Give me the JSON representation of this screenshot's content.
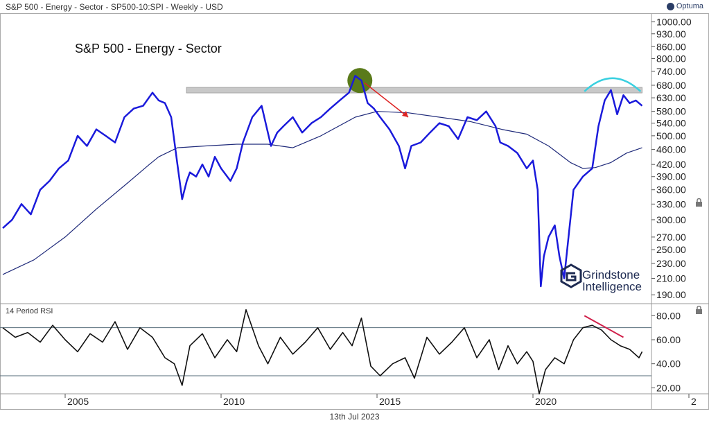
{
  "header": {
    "symbol_line": "S&P 500 - Energy - Sector  - SP500-10:SPI - Weekly - USD",
    "brand": "Optuma"
  },
  "footer": {
    "date": "13th Jul 2023"
  },
  "watermark": {
    "line1": "Grindstone",
    "line2": "Intelligence"
  },
  "colors": {
    "price": "#1a1adb",
    "ma": "#1f2a7a",
    "rsi": "#111111",
    "resistance": "#c8c8c8",
    "highlight_circle": "#5a7a1a",
    "arrow": "#dd2222",
    "arc": "#3ad0e0",
    "divergence": "#d0204a"
  },
  "chart_data": [
    {
      "type": "line",
      "title": "S&P 500 - Energy - Sector",
      "yscale": "log",
      "ylim": [
        180,
        1050
      ],
      "xlim": [
        2003.0,
        2023.8
      ],
      "y_ticks": [
        "1000.00",
        "930.00",
        "860.00",
        "800.00",
        "740.00",
        "680.00",
        "630.00",
        "580.00",
        "540.00",
        "500.00",
        "460.00",
        "420.00",
        "390.00",
        "360.00",
        "330.00",
        "300.00",
        "270.00",
        "250.00",
        "230.00",
        "210.00",
        "190.00"
      ],
      "x_ticks": [
        "2005",
        "2010",
        "2015",
        "2020",
        "2"
      ],
      "series": [
        {
          "role": "price",
          "x": [
            2003.0,
            2003.3,
            2003.6,
            2003.9,
            2004.2,
            2004.5,
            2004.8,
            2005.1,
            2005.4,
            2005.7,
            2006.0,
            2006.3,
            2006.6,
            2006.9,
            2007.2,
            2007.5,
            2007.8,
            2008.0,
            2008.2,
            2008.4,
            2008.6,
            2008.75,
            2008.9,
            2009.0,
            2009.2,
            2009.4,
            2009.6,
            2009.8,
            2010.0,
            2010.3,
            2010.5,
            2010.7,
            2011.0,
            2011.3,
            2011.6,
            2011.8,
            2012.0,
            2012.3,
            2012.6,
            2012.9,
            2013.2,
            2013.5,
            2013.8,
            2014.1,
            2014.3,
            2014.5,
            2014.7,
            2014.9,
            2015.1,
            2015.4,
            2015.7,
            2015.9,
            2016.1,
            2016.4,
            2016.7,
            2017.0,
            2017.3,
            2017.6,
            2017.9,
            2018.2,
            2018.5,
            2018.8,
            2018.95,
            2019.2,
            2019.5,
            2019.8,
            2020.0,
            2020.15,
            2020.25,
            2020.35,
            2020.5,
            2020.7,
            2020.85,
            2021.0,
            2021.3,
            2021.6,
            2021.9,
            2022.1,
            2022.3,
            2022.5,
            2022.7,
            2022.9,
            2023.1,
            2023.3,
            2023.5
          ],
          "y": [
            285,
            300,
            330,
            310,
            360,
            380,
            410,
            430,
            500,
            470,
            520,
            500,
            480,
            560,
            590,
            600,
            650,
            620,
            610,
            560,
            420,
            340,
            380,
            400,
            390,
            420,
            390,
            440,
            410,
            380,
            410,
            480,
            560,
            600,
            470,
            510,
            530,
            560,
            510,
            540,
            560,
            590,
            620,
            650,
            720,
            700,
            610,
            590,
            560,
            520,
            470,
            410,
            470,
            480,
            510,
            540,
            530,
            490,
            560,
            550,
            580,
            530,
            480,
            470,
            450,
            410,
            430,
            360,
            200,
            240,
            270,
            290,
            240,
            210,
            360,
            390,
            410,
            530,
            620,
            660,
            570,
            640,
            610,
            620,
            600
          ]
        },
        {
          "role": "moving-average",
          "x": [
            2003.0,
            2004.0,
            2005.0,
            2006.0,
            2007.0,
            2007.7,
            2008.0,
            2008.6,
            2009.5,
            2010.5,
            2011.5,
            2012.3,
            2013.2,
            2014.3,
            2015.0,
            2016.0,
            2017.0,
            2018.0,
            2019.0,
            2019.8,
            2020.5,
            2021.2,
            2021.6,
            2022.0,
            2022.5,
            2023.0,
            2023.5
          ],
          "y": [
            215,
            235,
            270,
            320,
            375,
            420,
            440,
            465,
            470,
            475,
            475,
            465,
            500,
            560,
            580,
            575,
            560,
            545,
            520,
            505,
            470,
            425,
            410,
            412,
            425,
            450,
            465
          ]
        }
      ],
      "annotations": {
        "resistance_level": 660
      }
    },
    {
      "type": "line",
      "title": "14 Period RSI",
      "ylim": [
        15,
        90
      ],
      "y_ticks": [
        "80.00",
        "60.00",
        "40.00",
        "20.00"
      ],
      "reference_lines": [
        30,
        70
      ],
      "series": [
        {
          "role": "rsi",
          "x": [
            2003.0,
            2003.4,
            2003.8,
            2004.2,
            2004.6,
            2005.0,
            2005.4,
            2005.8,
            2006.2,
            2006.6,
            2007.0,
            2007.4,
            2007.8,
            2008.2,
            2008.5,
            2008.75,
            2009.0,
            2009.4,
            2009.8,
            2010.2,
            2010.5,
            2010.8,
            2011.2,
            2011.5,
            2011.9,
            2012.3,
            2012.7,
            2013.1,
            2013.5,
            2013.9,
            2014.2,
            2014.5,
            2014.8,
            2015.1,
            2015.5,
            2015.9,
            2016.2,
            2016.6,
            2017.0,
            2017.4,
            2017.8,
            2018.2,
            2018.6,
            2018.9,
            2019.2,
            2019.5,
            2019.8,
            2020.0,
            2020.2,
            2020.4,
            2020.7,
            2021.0,
            2021.3,
            2021.6,
            2021.9,
            2022.2,
            2022.5,
            2022.8,
            2023.1,
            2023.4,
            2023.5
          ],
          "y": [
            70,
            62,
            66,
            58,
            72,
            60,
            50,
            65,
            58,
            75,
            52,
            70,
            62,
            45,
            40,
            22,
            55,
            65,
            45,
            60,
            50,
            85,
            55,
            40,
            62,
            48,
            58,
            70,
            52,
            66,
            55,
            78,
            38,
            30,
            40,
            45,
            28,
            62,
            48,
            58,
            70,
            45,
            60,
            35,
            55,
            40,
            50,
            42,
            15,
            35,
            45,
            40,
            60,
            70,
            72,
            68,
            60,
            55,
            52,
            45,
            50
          ]
        }
      ]
    }
  ]
}
